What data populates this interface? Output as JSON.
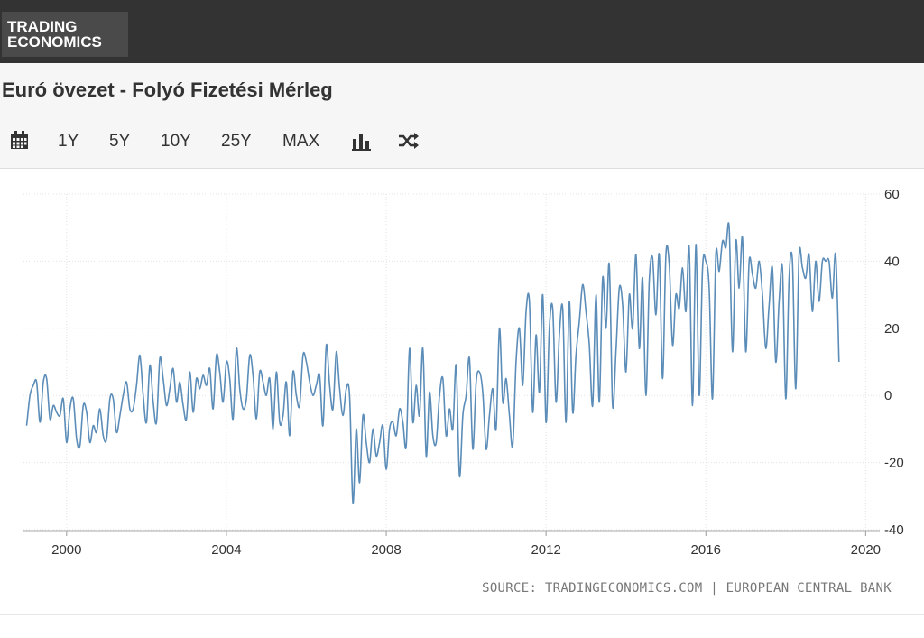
{
  "logo": {
    "line1": "TRADING",
    "line2": "ECONOMICS"
  },
  "title": "Euró övezet - Folyó Fizetési Mérleg",
  "toolbar": {
    "calendar_icon": "calendar-icon",
    "ranges": [
      "1Y",
      "5Y",
      "10Y",
      "25Y",
      "MAX"
    ],
    "bar_icon": "bar-chart-icon",
    "shuffle_icon": "shuffle-icon"
  },
  "source": "SOURCE: TRADINGECONOMICS.COM | EUROPEAN CENTRAL BANK",
  "colors": {
    "line": "#5b8db8",
    "topbar": "#333333",
    "grid": "#e3e3e3"
  },
  "chart_data": {
    "type": "line",
    "title": "Euró övezet - Folyó Fizetési Mérleg",
    "xlabel": "",
    "ylabel": "",
    "x_ticks": [
      "2000",
      "2004",
      "2008",
      "2012",
      "2016",
      "2020"
    ],
    "y_ticks": [
      60,
      40,
      20,
      0,
      -20,
      -40
    ],
    "ylim": [
      -40,
      60
    ],
    "xlim": [
      "1999-01",
      "2020-05"
    ],
    "grid": true,
    "y_axis_position": "right",
    "series": [
      {
        "name": "",
        "start": "1999-01",
        "frequency": "monthly",
        "values": [
          -9,
          0,
          3,
          4,
          -8,
          4,
          5,
          -7,
          -3,
          -5,
          -6,
          -1,
          -14,
          -4,
          -1,
          -13,
          -15,
          -3,
          -5,
          -14,
          -9,
          -11,
          -4,
          -12,
          -13,
          -1,
          -1,
          -11,
          -6,
          0,
          4,
          -4,
          -4,
          3,
          12,
          0,
          -8,
          9,
          -2,
          -8,
          11,
          5,
          -3,
          2,
          8,
          -2,
          4,
          -3,
          -7,
          7,
          -5,
          5,
          2,
          6,
          3,
          8,
          -4,
          12,
          7,
          -2,
          10,
          5,
          -7,
          14,
          2,
          -4,
          -1,
          12,
          6,
          -7,
          7,
          4,
          0,
          5,
          -10,
          7,
          -8,
          -6,
          4,
          -12,
          7,
          0,
          -3,
          12,
          10,
          4,
          0,
          3,
          6,
          -9,
          15,
          3,
          -4,
          13,
          2,
          -6,
          2,
          0,
          -32,
          -10,
          -26,
          -6,
          -14,
          -20,
          -10,
          -18,
          -14,
          -9,
          -22,
          -10,
          -8,
          -12,
          -4,
          -8,
          -15,
          14,
          -8,
          3,
          -6,
          14,
          -18,
          1,
          -12,
          -14,
          0,
          5,
          -12,
          -4,
          -10,
          9,
          -24,
          -6,
          0,
          11,
          -16,
          4,
          7,
          1,
          -16,
          -6,
          2,
          -10,
          20,
          -2,
          5,
          -6,
          -15,
          10,
          20,
          3,
          25,
          28,
          -5,
          18,
          1,
          30,
          -8,
          20,
          26,
          -2,
          18,
          26,
          -8,
          28,
          -5,
          12,
          22,
          33,
          25,
          15,
          -3,
          30,
          -2,
          35,
          20,
          39,
          -3,
          13,
          32,
          27,
          7,
          30,
          20,
          42,
          14,
          35,
          0,
          34,
          41,
          24,
          42,
          5,
          42,
          39,
          15,
          30,
          26,
          38,
          25,
          44,
          -3,
          45,
          0,
          38,
          40,
          32,
          -1,
          42,
          37,
          46,
          44,
          50,
          13,
          46,
          32,
          47,
          13,
          40,
          36,
          32,
          40,
          30,
          14,
          27,
          38,
          10,
          28,
          38,
          -1,
          35,
          40,
          2,
          42,
          38,
          35,
          42,
          25,
          40,
          28,
          40,
          40,
          40,
          29,
          42,
          10
        ]
      }
    ]
  }
}
